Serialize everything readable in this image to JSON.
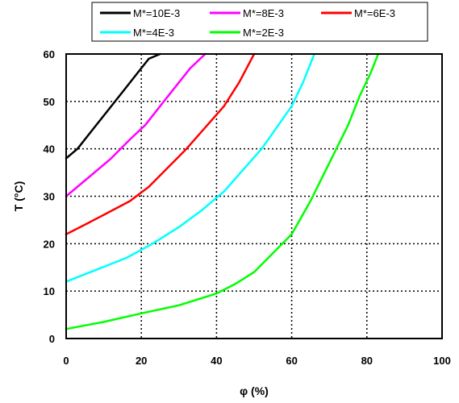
{
  "chart_data": {
    "type": "line",
    "title": "",
    "xlabel": "φ (%)",
    "ylabel": "T (°C)",
    "xlim": [
      0,
      100
    ],
    "ylim": [
      0,
      60
    ],
    "xticks": [
      0,
      20,
      40,
      60,
      80,
      100
    ],
    "yticks": [
      0,
      10,
      20,
      30,
      40,
      50,
      60
    ],
    "grid": "dotted",
    "legend_position": "top",
    "series": [
      {
        "name": "M*=10E-3",
        "color": "#000000",
        "x": [
          0,
          3,
          7,
          11,
          15,
          19,
          22,
          25
        ],
        "y": [
          38,
          40,
          44,
          48,
          52,
          56,
          59,
          60
        ]
      },
      {
        "name": "M*=8E-3",
        "color": "#ff00ff",
        "x": [
          0,
          6,
          12,
          17,
          21,
          25,
          29,
          33,
          37
        ],
        "y": [
          30,
          34,
          38,
          42,
          45,
          49,
          53,
          57,
          60
        ]
      },
      {
        "name": "M*=6E-3",
        "color": "#ff0000",
        "x": [
          0,
          5,
          11,
          17,
          22,
          27,
          32,
          37,
          42,
          46,
          50
        ],
        "y": [
          22,
          24,
          26.5,
          29,
          32,
          36,
          40,
          44.5,
          49,
          54,
          60
        ]
      },
      {
        "name": "M*=4E-3",
        "color": "#00ffff",
        "x": [
          0,
          8,
          16,
          23,
          30,
          36,
          42,
          47,
          52,
          56,
          60,
          63,
          66
        ],
        "y": [
          12,
          14.5,
          17,
          20,
          23.5,
          27,
          31,
          35.5,
          40,
          44.5,
          49,
          54,
          60
        ]
      },
      {
        "name": "M*=2E-3",
        "color": "#00ff00",
        "x": [
          0,
          10,
          20,
          30,
          40,
          45,
          50,
          55,
          60,
          65,
          70,
          75,
          78,
          81,
          83
        ],
        "y": [
          2,
          3.5,
          5.3,
          7,
          9.5,
          11.5,
          14,
          18,
          22,
          29,
          37,
          45,
          51,
          56,
          60
        ]
      }
    ]
  }
}
